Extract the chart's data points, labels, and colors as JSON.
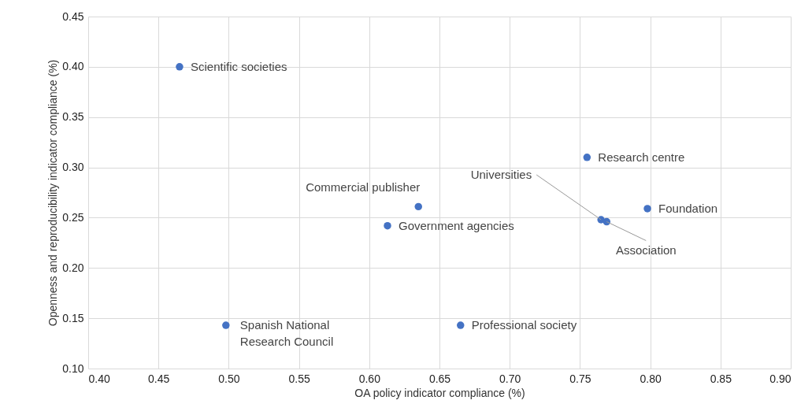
{
  "chart_data": {
    "type": "scatter",
    "xlabel": "OA policy indicator compliance (%)",
    "ylabel": "Openness and reproducibility indicator compliance (%)",
    "x": [
      0.465,
      0.498,
      0.613,
      0.635,
      0.665,
      0.755,
      0.765,
      0.769,
      0.798
    ],
    "series": [
      {
        "color": "#4472c4",
        "values": [
          0.4,
          0.143,
          0.242,
          0.261,
          0.143,
          0.31,
          0.248,
          0.246,
          0.259
        ]
      }
    ],
    "xlim": [
      0.4,
      0.9
    ],
    "xticks": [
      {
        "value": 0.4,
        "label": "0.40"
      },
      {
        "value": 0.45,
        "label": "0.45"
      },
      {
        "value": 0.5,
        "label": "0.50"
      },
      {
        "value": 0.55,
        "label": "0.55"
      },
      {
        "value": 0.6,
        "label": "0.60"
      },
      {
        "value": 0.65,
        "label": "0.65"
      },
      {
        "value": 0.7,
        "label": "0.70"
      },
      {
        "value": 0.75,
        "label": "0.75"
      },
      {
        "value": 0.8,
        "label": "0.80"
      },
      {
        "value": 0.85,
        "label": "0.85"
      },
      {
        "value": 0.9,
        "label": "0.90"
      }
    ],
    "ylim": [
      0.1,
      0.45
    ],
    "yticks": [
      {
        "value": 0.1,
        "label": "0.10"
      },
      {
        "value": 0.15,
        "label": "0.15"
      },
      {
        "value": 0.2,
        "label": "0.20"
      },
      {
        "value": 0.25,
        "label": "0.25"
      },
      {
        "value": 0.3,
        "label": "0.30"
      },
      {
        "value": 0.35,
        "label": "0.35"
      },
      {
        "value": 0.4,
        "label": "0.40"
      },
      {
        "value": 0.45,
        "label": "0.45"
      }
    ],
    "grid": true,
    "marker": "circle",
    "annotations": [
      {
        "text": "Scientific societies",
        "x": 0.465,
        "y": 0.4
      },
      {
        "text": "Spanish National Research Council",
        "x": 0.498,
        "y": 0.143
      },
      {
        "text": "Government agencies",
        "x": 0.613,
        "y": 0.242
      },
      {
        "text": "Commercial publisher",
        "x": 0.635,
        "y": 0.261
      },
      {
        "text": "Professional society",
        "x": 0.665,
        "y": 0.143
      },
      {
        "text": "Research centre",
        "x": 0.755,
        "y": 0.31
      },
      {
        "text": "Universities",
        "x": 0.765,
        "y": 0.248
      },
      {
        "text": "Association",
        "x": 0.769,
        "y": 0.246
      },
      {
        "text": "Foundation",
        "x": 0.798,
        "y": 0.259
      }
    ]
  }
}
